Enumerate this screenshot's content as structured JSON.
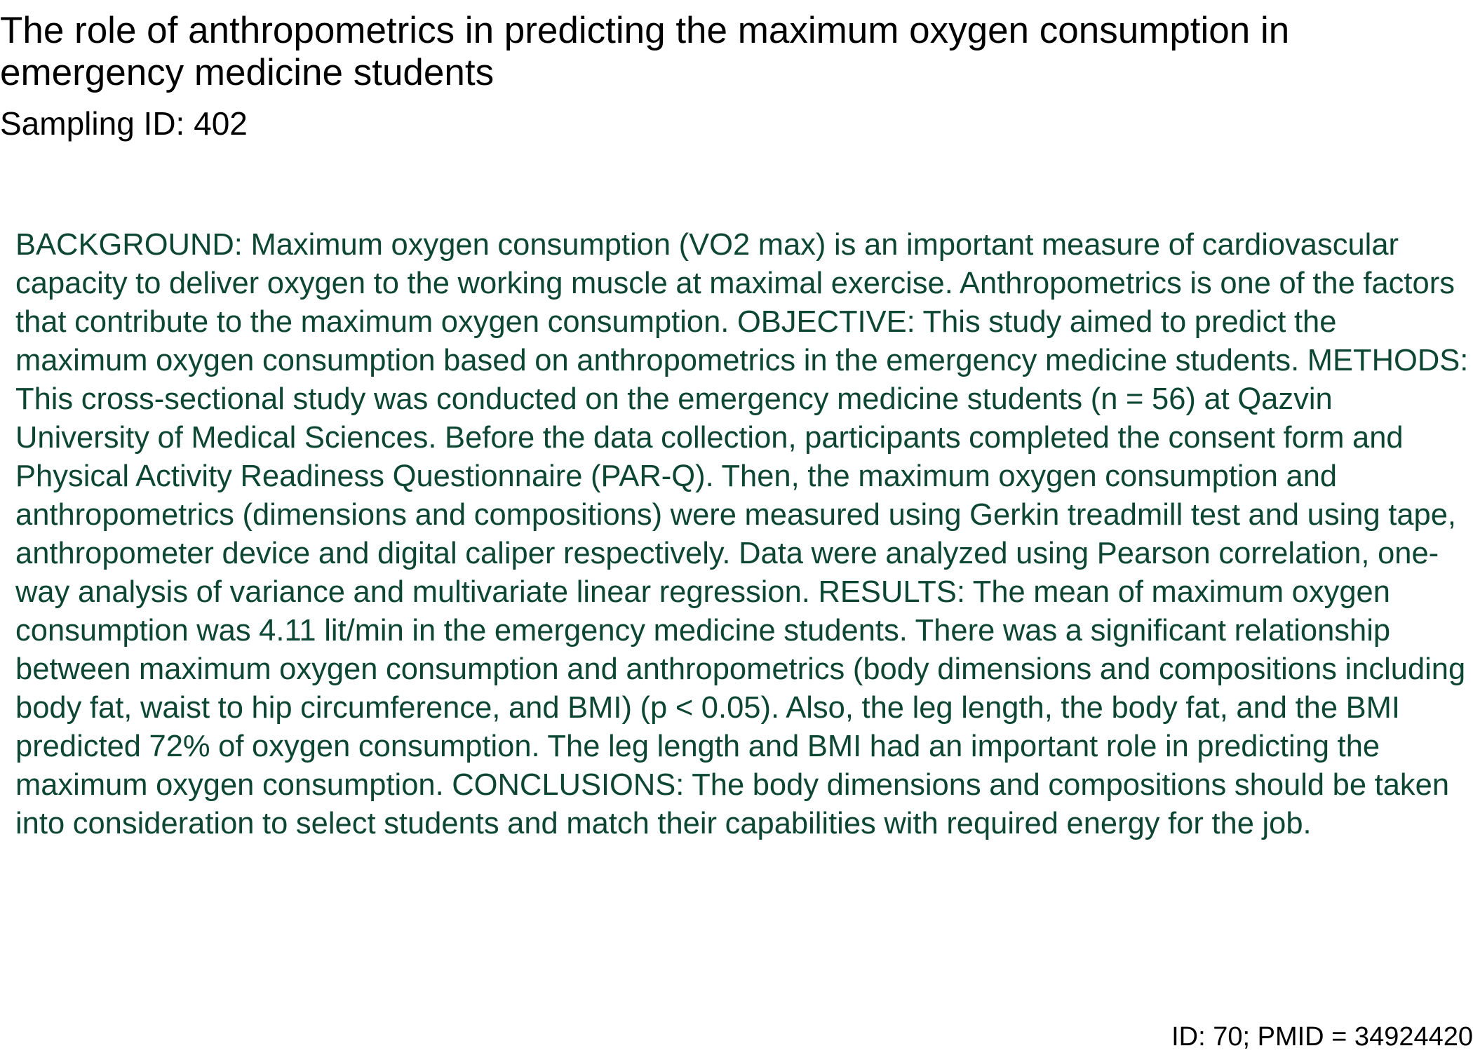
{
  "document": {
    "title": "The role of anthropometrics in predicting the maximum oxygen consumption in emergency medicine students",
    "sampling_id": "Sampling ID: 402",
    "abstract": "BACKGROUND: Maximum oxygen consumption (VO2 max) is an important measure of cardiovascular capacity to deliver oxygen to the working muscle at maximal exercise. Anthropometrics is one of the factors that contribute to the maximum oxygen consumption. OBJECTIVE: This study aimed to predict the maximum oxygen consumption based on anthropometrics in the emergency medicine students. METHODS: This cross-sectional study was conducted on the emergency medicine students (n = 56) at Qazvin University of Medical Sciences. Before the data collection, participants completed the consent form and Physical Activity Readiness Questionnaire (PAR-Q). Then, the maximum oxygen consumption and anthropometrics (dimensions and compositions) were measured using Gerkin treadmill test and using tape, anthropometer device and digital caliper respectively. Data were analyzed using Pearson correlation, one-way analysis of variance and multivariate linear regression. RESULTS: The mean of maximum oxygen consumption was 4.11 lit/min in the emergency medicine students. There was a significant relationship between maximum oxygen consumption and anthropometrics (body dimensions and compositions including body fat, waist to hip circumference, and BMI) (p < 0.05). Also, the leg length, the body fat, and the BMI predicted 72% of oxygen consumption. The leg length and BMI had an important role in predicting the maximum oxygen consumption. CONCLUSIONS: The body dimensions and compositions should be taken into consideration to select students and match their capabilities with required energy for the job.",
    "footer_id": "ID: 70; PMID = 34924420"
  },
  "colors": {
    "title_text": "#000000",
    "abstract_text": "#0d4733",
    "background": "#ffffff"
  }
}
